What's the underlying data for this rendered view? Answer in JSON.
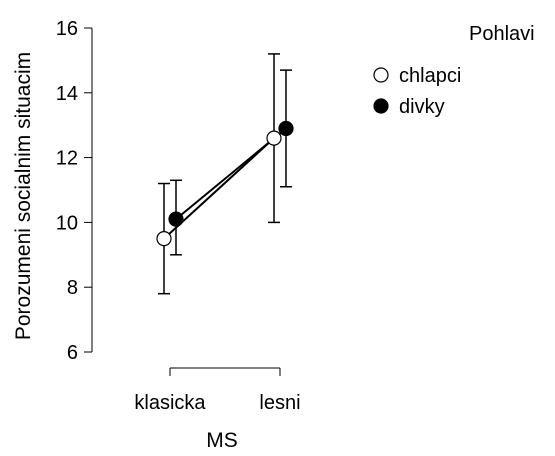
{
  "chart_data": {
    "type": "line",
    "title": "",
    "xlabel": "MS",
    "ylabel": "Porozumeni socialnim situacim",
    "categories": [
      "klasicka",
      "lesni"
    ],
    "ylim": [
      6,
      16
    ],
    "yticks": [
      6,
      8,
      10,
      12,
      14,
      16
    ],
    "grid": false,
    "legend": {
      "title": "Pohlavi",
      "position": "top-right"
    },
    "series": [
      {
        "name": "chlapci",
        "marker": "open-circle",
        "color": "#000000",
        "values": [
          9.5,
          12.6
        ],
        "error_low": [
          7.8,
          10.0
        ],
        "error_high": [
          11.2,
          15.2
        ]
      },
      {
        "name": "divky",
        "marker": "filled-circle",
        "color": "#000000",
        "values": [
          10.1,
          12.9
        ],
        "error_low": [
          9.0,
          11.1
        ],
        "error_high": [
          11.3,
          14.7
        ]
      }
    ]
  }
}
